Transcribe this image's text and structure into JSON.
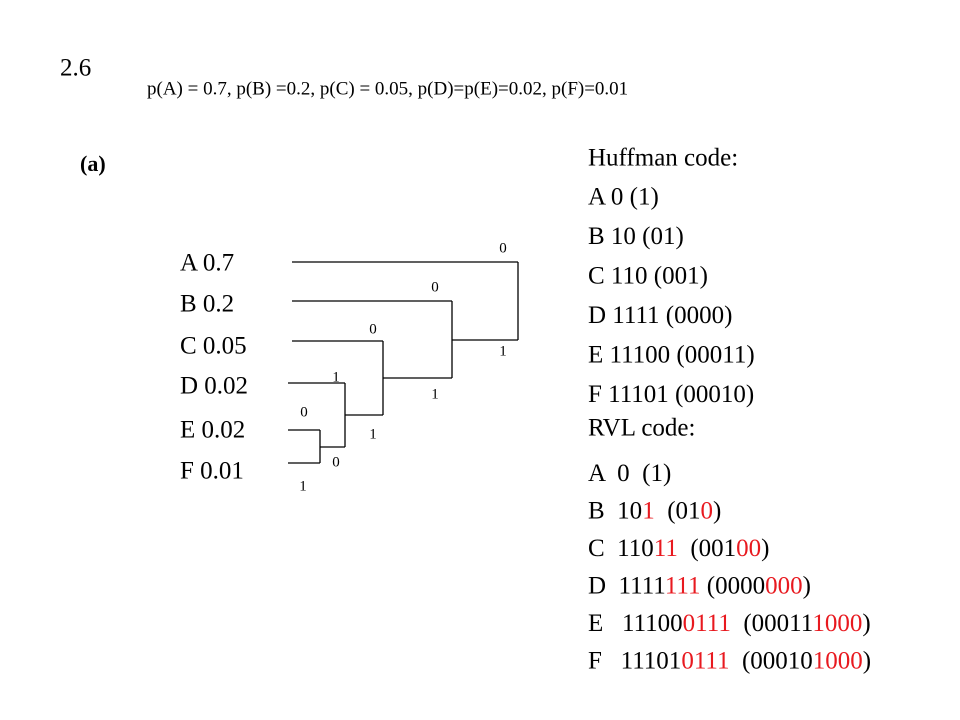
{
  "header": {
    "number": "2.6",
    "probabilities": "p(A) = 0.7, p(B) =0.2,  p(C) = 0.05,  p(D)=p(E)=0.02,  p(F)=0.01"
  },
  "part": "(a)",
  "symbols": [
    "A  0.7",
    "B   0.2",
    "C   0.05",
    "D   0.02",
    "E    0.02",
    "F    0.01"
  ],
  "branches": [
    "0",
    "1",
    "0",
    "1",
    "0",
    "1",
    "1",
    "0",
    "0",
    "1"
  ],
  "huffman": {
    "title": "Huffman code:",
    "lines": [
      "A  0  (1)",
      "B  10  (01)",
      "C  110  (001)",
      "D  1111 (0000)",
      "E   11100  (00011)",
      "F   11101  (00010)"
    ]
  },
  "rvl": {
    "title": "RVL code:",
    "lines": [
      [
        {
          "text": "A  0  (1)",
          "color": "#000000"
        }
      ],
      [
        {
          "text": "B  10",
          "color": "#000000"
        },
        {
          "text": "1",
          "color": "#e8191f"
        },
        {
          "text": "  (01",
          "color": "#000000"
        },
        {
          "text": "0",
          "color": "#e8191f"
        },
        {
          "text": ")",
          "color": "#000000"
        }
      ],
      [
        {
          "text": "C  110",
          "color": "#000000"
        },
        {
          "text": "11",
          "color": "#e8191f"
        },
        {
          "text": "  (001",
          "color": "#000000"
        },
        {
          "text": "00",
          "color": "#e8191f"
        },
        {
          "text": ")",
          "color": "#000000"
        }
      ],
      [
        {
          "text": "D  1111",
          "color": "#000000"
        },
        {
          "text": "111",
          "color": "#e8191f"
        },
        {
          "text": " (0000",
          "color": "#000000"
        },
        {
          "text": "000",
          "color": "#e8191f"
        },
        {
          "text": ")",
          "color": "#000000"
        }
      ],
      [
        {
          "text": "E   11100",
          "color": "#000000"
        },
        {
          "text": "0111",
          "color": "#e8191f"
        },
        {
          "text": "  (00011",
          "color": "#000000"
        },
        {
          "text": "1000",
          "color": "#e8191f"
        },
        {
          "text": ")",
          "color": "#000000"
        }
      ],
      [
        {
          "text": "F   11101",
          "color": "#000000"
        },
        {
          "text": "0111",
          "color": "#e8191f"
        },
        {
          "text": "  (00010",
          "color": "#000000"
        },
        {
          "text": "1000",
          "color": "#e8191f"
        },
        {
          "text": ")",
          "color": "#000000"
        }
      ]
    ]
  }
}
